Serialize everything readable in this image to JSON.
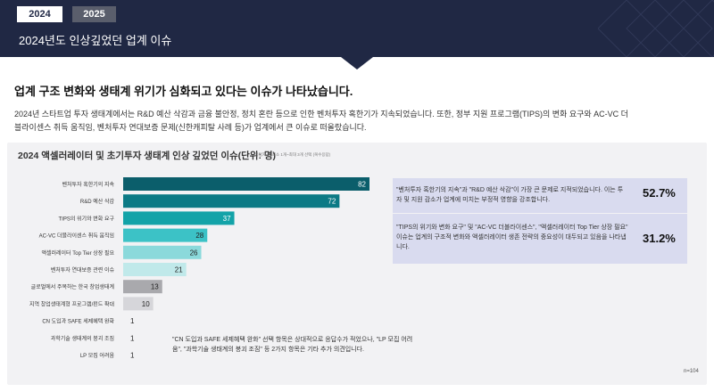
{
  "header": {
    "tabs": [
      "2024",
      "2025"
    ],
    "title": "2024년도 인상깊었던 업계 이슈"
  },
  "intro": {
    "headline": "업계 구조 변화와 생태계 위기가 심화되고 있다는 이슈가 나타났습니다.",
    "description": "2024년 스타트업 투자 생태계에서는 R&D 예산 삭감과 금융 불안정, 정치 혼란 등으로 인한 벤처투자 혹한기가 지속되었습니다. 또한, 정부 지원 프로그램(TIPS)의 변화 요구와 AC-VC 더블라이센스 취득 움직임, 벤처투자 연대보증 문제(신한캐피탈 사례 등)가 업계에서 큰 이슈로 떠올랐습니다."
  },
  "chart": {
    "title": "2024 액셀러레이터 및 초기투자 생태계 인상 깊었던 이슈(단위: 명)",
    "note": "*응답자 당 최소 1개~최대 3개 선택 (복수응답)",
    "group_notes": [
      "\"벤처투자 혹한기의 지속\"과 \"R&D 예산 삭감\"이 가장 큰 문제로 지적되었습니다. 이는 투자 및 지원 감소가 업계에 미치는 부정적 영향을 강조합니다.",
      "\"TIPS의 위기와 변화 요구\" 및 \"AC-VC 더블라이센스\", \"액셀러레이터 Top Tier 상장 필요\" 이슈는 업계의 구조적 변화와 액셀러레이터 생존 전략의 중요성이 대두되고 있음을 나타냅니다."
    ],
    "group_percents": [
      "52.7%",
      "31.2%"
    ],
    "footnote": "\"CN 도입과 SAFE 세제혜택 완화\" 선택 항목은 상대적으로 응답수가 적었으나, \"LP 모집 어려움\", \"과학기술 생태계의 붕괴 조짐\" 등 2가지 항목은 기타 추가 의견입니다.",
    "sample": "n=104",
    "colors": [
      "#0b5e6b",
      "#0c7a85",
      "#13a3a8",
      "#3cc2c6",
      "#8bd9db",
      "#c0e9ea",
      "#a9a9ad",
      "#d6d6da",
      "#d6d6da",
      "#d6d6da",
      "#d6d6da"
    ]
  },
  "chart_data": {
    "type": "bar",
    "orientation": "horizontal",
    "categories": [
      "벤처투자 혹한기의 지속",
      "R&D 예산 삭감",
      "TIPS의 위기와 변화 요구",
      "AC-VC 더블라이센스 취득 움직임",
      "액셀러레이터 Top Tier 상장 필요",
      "벤처투자 연대보증 관련 이슈",
      "글로벌에서 주목하는 한국 창업생태계",
      "지역 창업생태계형 프로그램/펀드 확대",
      "CN 도입과 SAFE 세제혜택 완화",
      "과학기술 생태계의 붕괴 조짐",
      "LP 모집 어려움"
    ],
    "values": [
      82,
      72,
      37,
      28,
      26,
      21,
      13,
      10,
      1,
      1,
      1
    ],
    "title": "2024 액셀러레이터 및 초기투자 생태계 인상 깊었던 이슈(단위: 명)"
  }
}
